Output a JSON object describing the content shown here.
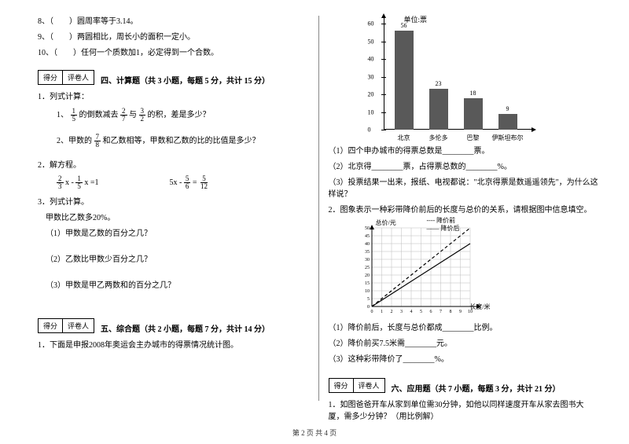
{
  "left": {
    "q8": "8、（　　）圆周率等于3.14。",
    "q9": "9、（　　）两圆相比，周长小的面积一定小。",
    "q10": "10、（　　）任何一个质数加1，必定得到一个合数。",
    "score_l": "得分",
    "score_r": "评卷人",
    "sec4_title": "四、计算题（共 3 小题，每题 5 分，共计 15 分）",
    "s4_1": "1．列式计算：",
    "s4_1_1_pre": "1、",
    "s4_1_1_a": "的倒数减去",
    "s4_1_1_b": "与",
    "s4_1_1_c": "的积，差是多少？",
    "s4_1_2_pre": "2、甲数的",
    "s4_1_2_a": "和乙数相等，甲数和乙数的比的比值是多少？",
    "s4_2": "2．解方程。",
    "s4_2_eq1_l": "x -",
    "s4_2_eq1_r": "x =1",
    "s4_2_eq2": "5x -",
    "s4_2_eq2_eq": "=",
    "s4_3": "3．列式计算。",
    "s4_3_a": "甲数比乙数多20%。",
    "s4_3_1": "（1）甲数是乙数的百分之几？",
    "s4_3_2": "（2）乙数比甲数少百分之几？",
    "s4_3_3": "（3）甲数是甲乙两数和的百分之几？",
    "sec5_title": "五、综合题（共 2 小题，每题 7 分，共计 14 分）",
    "s5_1": "1．下面是申报2008年奥运会主办城市的得票情况统计图。",
    "frac": {
      "f1": {
        "n": "1",
        "d": "5"
      },
      "f2": {
        "n": "2",
        "d": "7"
      },
      "f3": {
        "n": "3",
        "d": "2"
      },
      "f4": {
        "n": "7",
        "d": "8"
      },
      "f5": {
        "n": "2",
        "d": "3"
      },
      "f6": {
        "n": "1",
        "d": "5"
      },
      "f7": {
        "n": "5",
        "d": "6"
      },
      "f8": {
        "n": "5",
        "d": "12"
      }
    }
  },
  "right": {
    "chart": {
      "unit": "单位:票",
      "ymax": 60,
      "ystep": 10,
      "bars": [
        {
          "label": "北京",
          "value": 56,
          "color": "#595959"
        },
        {
          "label": "多伦多",
          "value": 23,
          "color": "#595959"
        },
        {
          "label": "巴黎",
          "value": 18,
          "color": "#595959"
        },
        {
          "label": "伊斯坦布尔",
          "value": 9,
          "color": "#595959"
        }
      ]
    },
    "r1": "（1）四个申办城市的得票总数是________票。",
    "r2": "（2）北京得________票，占得票总数的________%。",
    "r3": "（3）投票结果一出来，报纸、电视都说：\"北京得票是数遥遥领先\"，为什么这样说？",
    "s5_2": "2．图象表示一种彩带降价前后的长度与总价的关系，请根据图中信息填空。",
    "linechart": {
      "ylabel": "总价/元",
      "xlabel": "长度/米",
      "legend_a": "降价前",
      "legend_b": "降价后",
      "xmax": 10,
      "ymax": 50,
      "grid_color": "#bcbcbc",
      "series": [
        {
          "type": "dashed",
          "points": [
            [
              0,
              0
            ],
            [
              10,
              50
            ]
          ]
        },
        {
          "type": "solid",
          "points": [
            [
              0,
              0
            ],
            [
              10,
              40
            ]
          ]
        }
      ]
    },
    "r_l1": "（1）降价前后，长度与总价都成________比例。",
    "r_l2": "（2）降价前买7.5米需________元。",
    "r_l3": "（3）这种彩带降价了________%。",
    "score_l": "得分",
    "score_r": "评卷人",
    "sec6_title": "六、应用题（共 7 小题，每题 3 分，共计 21 分）",
    "s6_1": "1．如图爸爸开车从家到单位需30分钟，如他以同样速度开车从家去图书大厦，需多少分钟？（用比例解）"
  },
  "footer": "第 2 页 共 4 页"
}
